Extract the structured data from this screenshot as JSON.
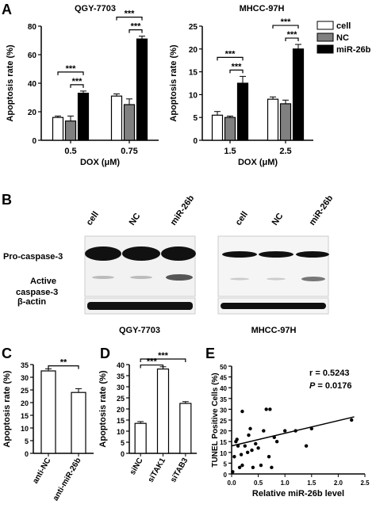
{
  "panels": {
    "A": "A",
    "B": "B",
    "C": "C",
    "D": "D",
    "E": "E"
  },
  "legend": {
    "items": [
      {
        "label": "cell",
        "color": "#ffffff"
      },
      {
        "label": "NC",
        "color": "#808080"
      },
      {
        "label": "miR-26b",
        "color": "#000000"
      }
    ]
  },
  "sig": "***",
  "sig2": "**",
  "chart_data": [
    {
      "id": "A1",
      "type": "bar",
      "title": "QGY-7703",
      "xlabel": "DOX (μM)",
      "ylabel": "Apoptosis rate (%)",
      "ylim": [
        0,
        80
      ],
      "yticks": [
        0,
        20,
        40,
        60,
        80
      ],
      "categories": [
        "0.5",
        "0.75"
      ],
      "series": [
        {
          "name": "cell",
          "values": [
            16,
            31
          ],
          "errors": [
            1,
            1.5
          ]
        },
        {
          "name": "NC",
          "values": [
            13.5,
            25
          ],
          "errors": [
            3.5,
            4
          ]
        },
        {
          "name": "miR-26b",
          "values": [
            33,
            71
          ],
          "errors": [
            1.5,
            2
          ]
        }
      ],
      "annotations": [
        "***",
        "***",
        "***",
        "***"
      ]
    },
    {
      "id": "A2",
      "type": "bar",
      "title": "MHCC-97H",
      "xlabel": "DOX (μM)",
      "ylabel": "Apoptosis rate (%)",
      "ylim": [
        0,
        25
      ],
      "yticks": [
        0,
        5,
        10,
        15,
        20,
        25
      ],
      "categories": [
        "1.5",
        "2.5"
      ],
      "series": [
        {
          "name": "cell",
          "values": [
            5.5,
            9
          ],
          "errors": [
            0.8,
            0.5
          ]
        },
        {
          "name": "NC",
          "values": [
            5,
            8
          ],
          "errors": [
            0.3,
            0.8
          ]
        },
        {
          "name": "miR-26b",
          "values": [
            12.5,
            20
          ],
          "errors": [
            1.5,
            1
          ]
        }
      ],
      "annotations": [
        "***",
        "***",
        "***",
        "***"
      ]
    },
    {
      "id": "C",
      "type": "bar",
      "ylabel": "Apoptosis rate (%)",
      "ylim": [
        0,
        35
      ],
      "yticks": [
        0,
        5,
        10,
        15,
        20,
        25,
        30,
        35
      ],
      "categories": [
        "anti-NC",
        "anti-miR-26b"
      ],
      "values": [
        32.5,
        24
      ],
      "errors": [
        0.8,
        1.5
      ],
      "annotations": [
        "**"
      ]
    },
    {
      "id": "D",
      "type": "bar",
      "ylabel": "Apoptosis rate (%)",
      "ylim": [
        0,
        40
      ],
      "yticks": [
        0,
        5,
        10,
        15,
        20,
        25,
        30,
        35,
        40
      ],
      "categories": [
        "siNC",
        "siTAK1",
        "siTAB3"
      ],
      "values": [
        13.5,
        38,
        22.5
      ],
      "errors": [
        0.8,
        1,
        0.8
      ],
      "annotations": [
        "***",
        "***"
      ]
    },
    {
      "id": "E",
      "type": "scatter",
      "xlabel": "Relative miR-26b level",
      "ylabel": "TUNEL Positive Cells (%)",
      "xlim": [
        0,
        2.5
      ],
      "ylim": [
        0,
        50
      ],
      "xticks": [
        "0.0",
        "0.5",
        "1.0",
        "1.5",
        "2.0",
        "2.5"
      ],
      "yticks": [
        0,
        5,
        10,
        15,
        20,
        25,
        30,
        35,
        40,
        45,
        50
      ],
      "r_label": "r = 0.5243",
      "p_label": "= 0.0176",
      "p_symbol": "P",
      "points": [
        [
          0.02,
          1
        ],
        [
          0.05,
          8
        ],
        [
          0.08,
          15
        ],
        [
          0.1,
          16
        ],
        [
          0.12,
          13
        ],
        [
          0.15,
          3
        ],
        [
          0.18,
          9
        ],
        [
          0.2,
          4
        ],
        [
          0.25,
          13
        ],
        [
          0.3,
          10
        ],
        [
          0.32,
          18
        ],
        [
          0.35,
          21
        ],
        [
          0.38,
          11
        ],
        [
          0.4,
          3
        ],
        [
          0.45,
          14
        ],
        [
          0.5,
          12
        ],
        [
          0.55,
          4
        ],
        [
          0.6,
          20
        ],
        [
          0.65,
          30
        ],
        [
          0.7,
          8
        ],
        [
          0.72,
          30
        ],
        [
          0.75,
          3
        ],
        [
          0.8,
          17
        ],
        [
          0.85,
          15
        ],
        [
          1.0,
          20
        ],
        [
          1.2,
          20
        ],
        [
          1.4,
          13
        ],
        [
          1.5,
          21
        ],
        [
          2.25,
          25
        ],
        [
          0.2,
          29
        ]
      ],
      "fit": [
        [
          0,
          13
        ],
        [
          2.3,
          26.5
        ]
      ]
    }
  ],
  "blot": {
    "lanes": [
      "cell",
      "NC",
      "miR-26b"
    ],
    "labels": {
      "pro": "Pro-caspase-3",
      "active1": "Active",
      "active2": "caspase-3",
      "actin": "β-actin"
    },
    "left_title": "QGY-7703",
    "right_title": "MHCC-97H"
  }
}
